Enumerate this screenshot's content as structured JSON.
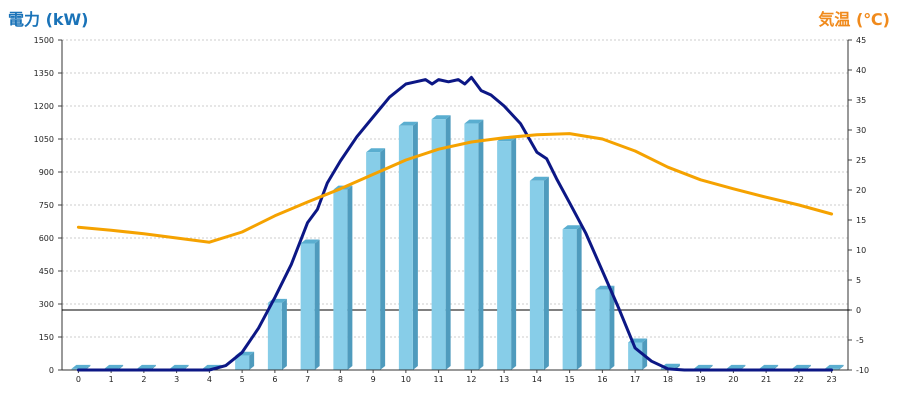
{
  "left_axis_title": "電力 (kW)",
  "right_axis_title": "気温 (℃)",
  "colors": {
    "bar_front": "#87cde8",
    "bar_side": "#4f9bbd",
    "bar_top": "#5aaed0",
    "power_line": "#0c1785",
    "temp_line": "#f5a200",
    "grid": "#bdbdbd",
    "zero_line": "#000000",
    "left_title": "#1a73b8",
    "right_title": "#f08a1c"
  },
  "chart_data": {
    "type": "bar",
    "categories": [
      "0",
      "1",
      "2",
      "3",
      "4",
      "5",
      "6",
      "7",
      "8",
      "9",
      "10",
      "11",
      "12",
      "13",
      "14",
      "15",
      "16",
      "17",
      "18",
      "19",
      "20",
      "21",
      "22",
      "23"
    ],
    "left_ticks": [
      "0",
      "150",
      "300",
      "450",
      "600",
      "750",
      "900",
      "1050",
      "1200",
      "1350",
      "1500"
    ],
    "right_ticks": [
      "-10",
      "-5",
      "0",
      "5",
      "10",
      "15",
      "20",
      "25",
      "30",
      "35",
      "40",
      "45"
    ],
    "ylim_left": [
      0,
      1500
    ],
    "ylim_right": [
      -10,
      45
    ],
    "grid": true,
    "series": [
      {
        "kind": "bar",
        "axis": "left",
        "values": [
          5,
          5,
          5,
          5,
          5,
          65,
          305,
          575,
          820,
          990,
          1110,
          1140,
          1120,
          1040,
          860,
          640,
          365,
          125,
          10,
          5,
          5,
          5,
          5,
          5
        ]
      },
      {
        "kind": "line",
        "axis": "left",
        "points": [
          [
            0,
            0
          ],
          [
            1,
            0
          ],
          [
            2,
            0
          ],
          [
            3,
            0
          ],
          [
            4,
            0
          ],
          [
            4.5,
            20
          ],
          [
            5,
            80
          ],
          [
            5.5,
            190
          ],
          [
            6,
            330
          ],
          [
            6.5,
            480
          ],
          [
            7,
            670
          ],
          [
            7.3,
            730
          ],
          [
            7.6,
            850
          ],
          [
            8,
            950
          ],
          [
            8.5,
            1060
          ],
          [
            9,
            1150
          ],
          [
            9.5,
            1240
          ],
          [
            10,
            1300
          ],
          [
            10.3,
            1310
          ],
          [
            10.6,
            1320
          ],
          [
            10.8,
            1300
          ],
          [
            11,
            1320
          ],
          [
            11.3,
            1310
          ],
          [
            11.6,
            1320
          ],
          [
            11.8,
            1300
          ],
          [
            12,
            1330
          ],
          [
            12.3,
            1270
          ],
          [
            12.6,
            1250
          ],
          [
            13,
            1200
          ],
          [
            13.5,
            1120
          ],
          [
            14,
            990
          ],
          [
            14.3,
            960
          ],
          [
            14.6,
            870
          ],
          [
            15,
            760
          ],
          [
            15.5,
            620
          ],
          [
            16,
            450
          ],
          [
            16.5,
            280
          ],
          [
            17,
            100
          ],
          [
            17.5,
            40
          ],
          [
            18,
            5
          ],
          [
            18.5,
            0
          ],
          [
            19,
            0
          ],
          [
            20,
            0
          ],
          [
            21,
            0
          ],
          [
            22,
            0
          ],
          [
            23,
            0
          ]
        ]
      },
      {
        "kind": "line",
        "axis": "right",
        "points": [
          [
            0,
            13.8
          ],
          [
            1,
            13.3
          ],
          [
            2,
            12.7
          ],
          [
            3,
            12
          ],
          [
            4,
            11.3
          ],
          [
            5,
            13
          ],
          [
            6,
            15.7
          ],
          [
            7,
            18
          ],
          [
            8,
            20.2
          ],
          [
            9,
            22.6
          ],
          [
            10,
            25
          ],
          [
            11,
            26.8
          ],
          [
            12,
            28
          ],
          [
            13,
            28.7
          ],
          [
            14,
            29.2
          ],
          [
            15,
            29.4
          ],
          [
            16,
            28.5
          ],
          [
            17,
            26.5
          ],
          [
            18,
            23.8
          ],
          [
            19,
            21.7
          ],
          [
            20,
            20.2
          ],
          [
            21,
            18.8
          ],
          [
            22,
            17.5
          ],
          [
            23,
            16
          ]
        ]
      }
    ],
    "zero_reference_right": 0
  }
}
